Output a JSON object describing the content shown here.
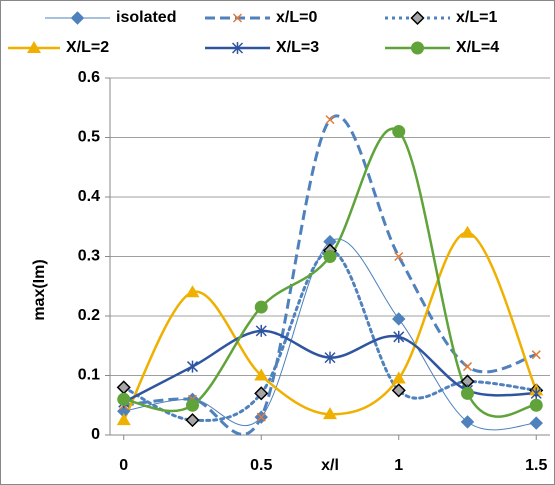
{
  "chart_data": {
    "type": "line",
    "smooth": true,
    "grid": true,
    "x_label": "x/l",
    "y_label": "max(Im)",
    "x": [
      0,
      0.25,
      0.5,
      0.75,
      1,
      1.25,
      1.5
    ],
    "xlim": [
      -0.05,
      1.55
    ],
    "xticks": [
      0,
      0.5,
      1,
      1.5
    ],
    "ylim": [
      0,
      0.6
    ],
    "yticks": [
      0,
      0.1,
      0.2,
      0.3,
      0.4,
      0.5,
      0.6
    ],
    "legend": "top",
    "series": [
      {
        "name": "isolated",
        "color": "#4f81bd",
        "marker_color": "#4f81bd",
        "marker": "diamond",
        "dash": "solid",
        "width": 1,
        "values": [
          0.04,
          0.06,
          0.03,
          0.325,
          0.195,
          0.022,
          0.02
        ]
      },
      {
        "name": "x/L=0",
        "color": "#4f81bd",
        "marker_color": "#e07b39",
        "marker": "x",
        "dash": "dashed",
        "width": 3,
        "values": [
          0.05,
          0.06,
          0.03,
          0.53,
          0.3,
          0.115,
          0.135
        ]
      },
      {
        "name": "x/L=1",
        "color": "#4f81bd",
        "marker_color": "#a6a6a6",
        "marker": "diamond-outline",
        "dash": "dotted",
        "width": 3,
        "values": [
          0.08,
          0.025,
          0.07,
          0.31,
          0.075,
          0.09,
          0.075
        ]
      },
      {
        "name": "X/L=2",
        "color": "#f0b000",
        "marker_color": "#f0b000",
        "marker": "triangle",
        "dash": "solid",
        "width": 2.5,
        "values": [
          0.025,
          0.24,
          0.1,
          0.035,
          0.095,
          0.34,
          0.075
        ]
      },
      {
        "name": "X/L=3",
        "color": "#2f54a0",
        "marker_color": "#2f54a0",
        "marker": "star",
        "dash": "solid",
        "width": 2.5,
        "values": [
          0.055,
          0.115,
          0.175,
          0.13,
          0.165,
          0.075,
          0.07
        ]
      },
      {
        "name": "X/L=4",
        "color": "#5fa33a",
        "marker_color": "#5fa33a",
        "marker": "circle",
        "dash": "solid",
        "width": 2.5,
        "values": [
          0.06,
          0.05,
          0.215,
          0.3,
          0.51,
          0.07,
          0.05
        ]
      }
    ]
  }
}
